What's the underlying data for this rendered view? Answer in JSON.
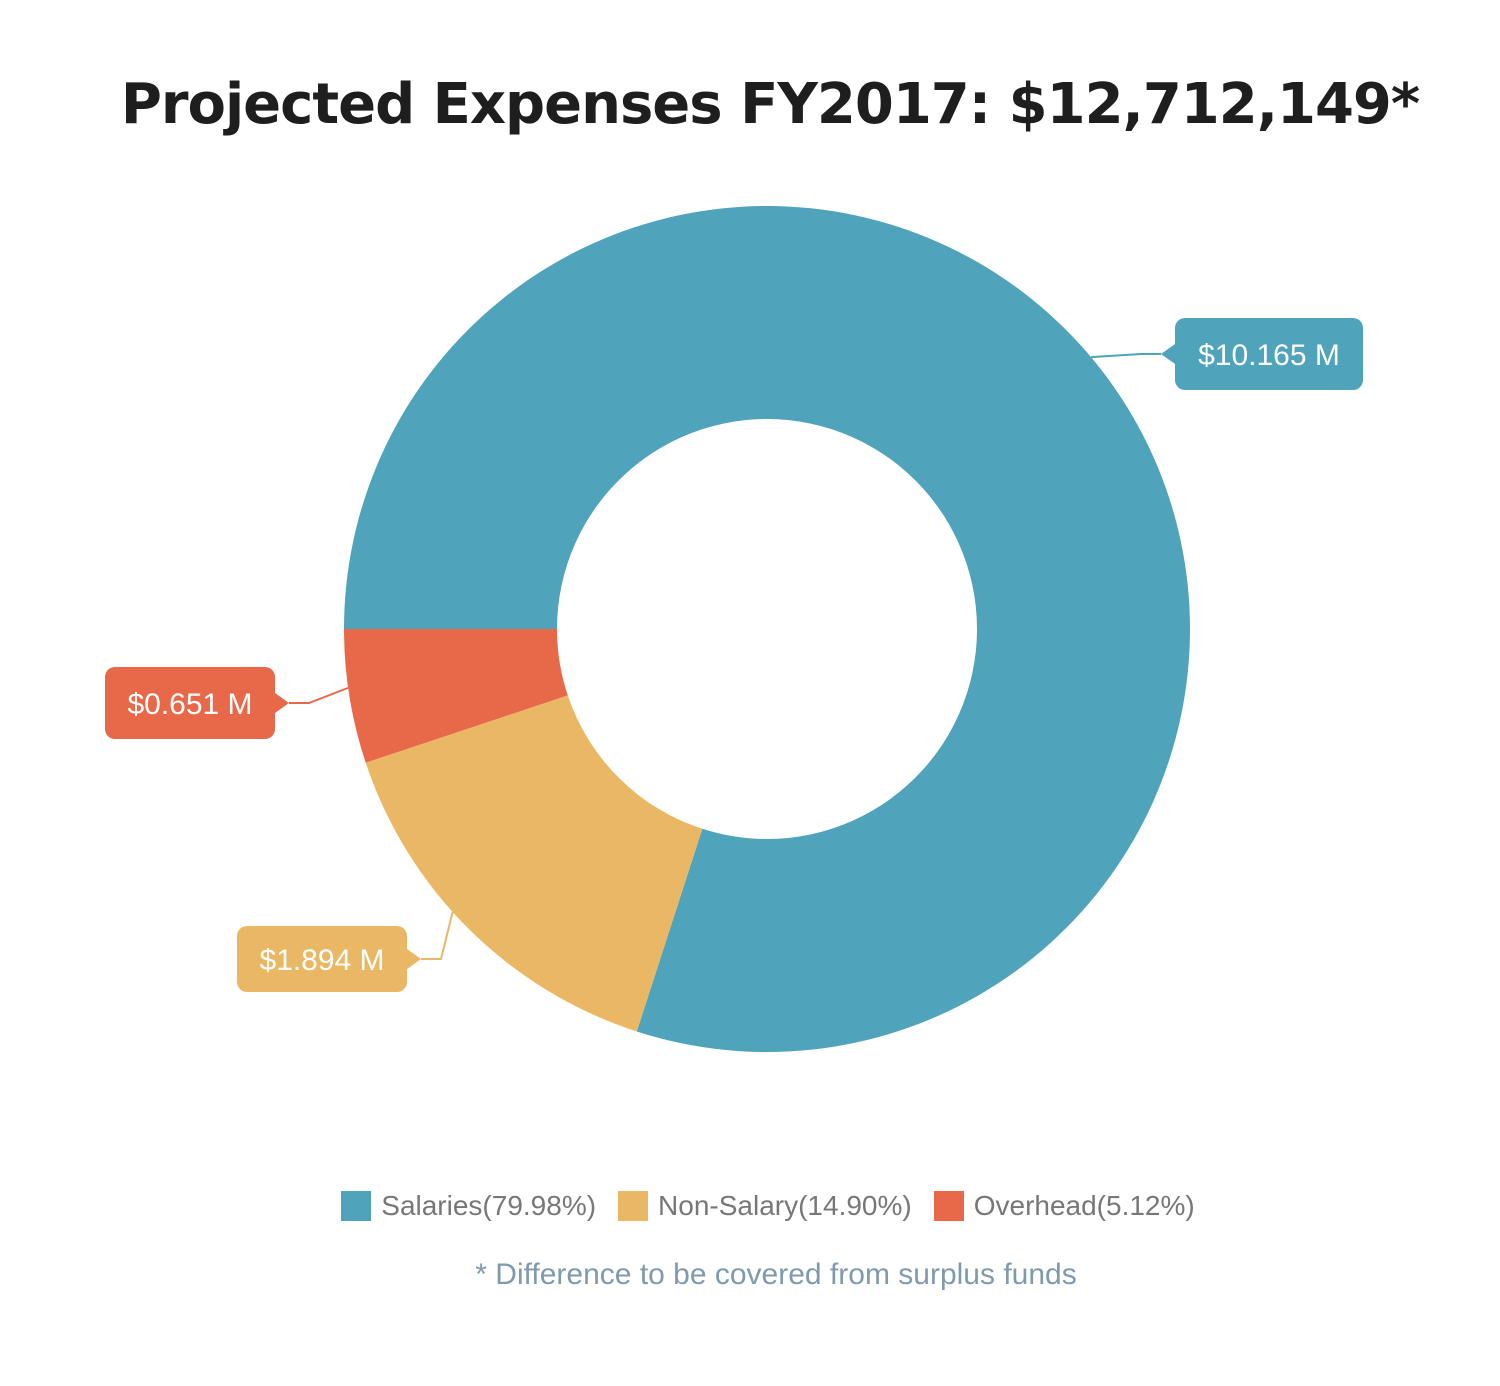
{
  "chart_data": {
    "type": "pie",
    "style": "donut",
    "title": "Projected Expenses FY2017: $12,712,149*",
    "slices": [
      {
        "name": "Salaries",
        "legend": "Salaries(79.98%)",
        "percent": 79.98,
        "value": 10.165,
        "label": "$10.165 M",
        "color": "#4fa3ba"
      },
      {
        "name": "Non-Salary",
        "legend": "Non-Salary(14.90%)",
        "percent": 14.9,
        "value": 1.894,
        "label": "$1.894 M",
        "color": "#eab864"
      },
      {
        "name": "Overhead",
        "legend": "Overhead(5.12%)",
        "percent": 5.12,
        "value": 0.651,
        "label": "$0.651 M",
        "color": "#e8694a"
      }
    ],
    "legend_placement": "bottom",
    "footnote": "* Difference to be covered from surplus funds"
  }
}
